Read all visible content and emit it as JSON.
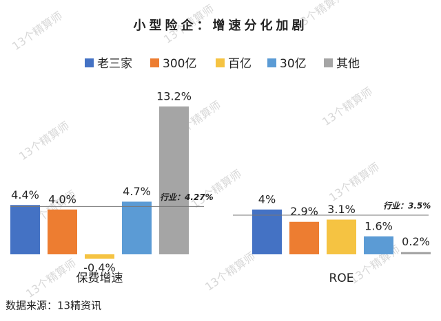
{
  "chart_data": {
    "type": "bar",
    "title": "小型险企：增速分化加剧",
    "categories": [
      "保费增速",
      "ROE"
    ],
    "series": [
      {
        "name": "老三家",
        "color": "#4472c4",
        "values": [
          4.4,
          4
        ],
        "value_labels": [
          "4.4%",
          "4%"
        ]
      },
      {
        "name": "300亿",
        "color": "#ed7d31",
        "values": [
          4.0,
          2.9
        ],
        "value_labels": [
          "4.0%",
          "2.9%"
        ]
      },
      {
        "name": "百亿",
        "color": "#f5c342",
        "values": [
          -0.4,
          3.1
        ],
        "value_labels": [
          "-0.4%",
          "3.1%"
        ]
      },
      {
        "name": "30亿",
        "color": "#5b9bd5",
        "values": [
          4.7,
          1.6
        ],
        "value_labels": [
          "4.7%",
          "1.6%"
        ]
      },
      {
        "name": "其他",
        "color": "#a5a5a5",
        "values": [
          13.2,
          0.2
        ],
        "value_labels": [
          "13.2%",
          "0.2%"
        ]
      }
    ],
    "reference_lines": [
      {
        "value": 4.27,
        "label": "行业：4.27%"
      },
      {
        "value": 3.5,
        "label": "行业：3.5%"
      }
    ],
    "legend": "top",
    "source": "数据来源：13精资讯",
    "watermark": "13个精算师"
  }
}
